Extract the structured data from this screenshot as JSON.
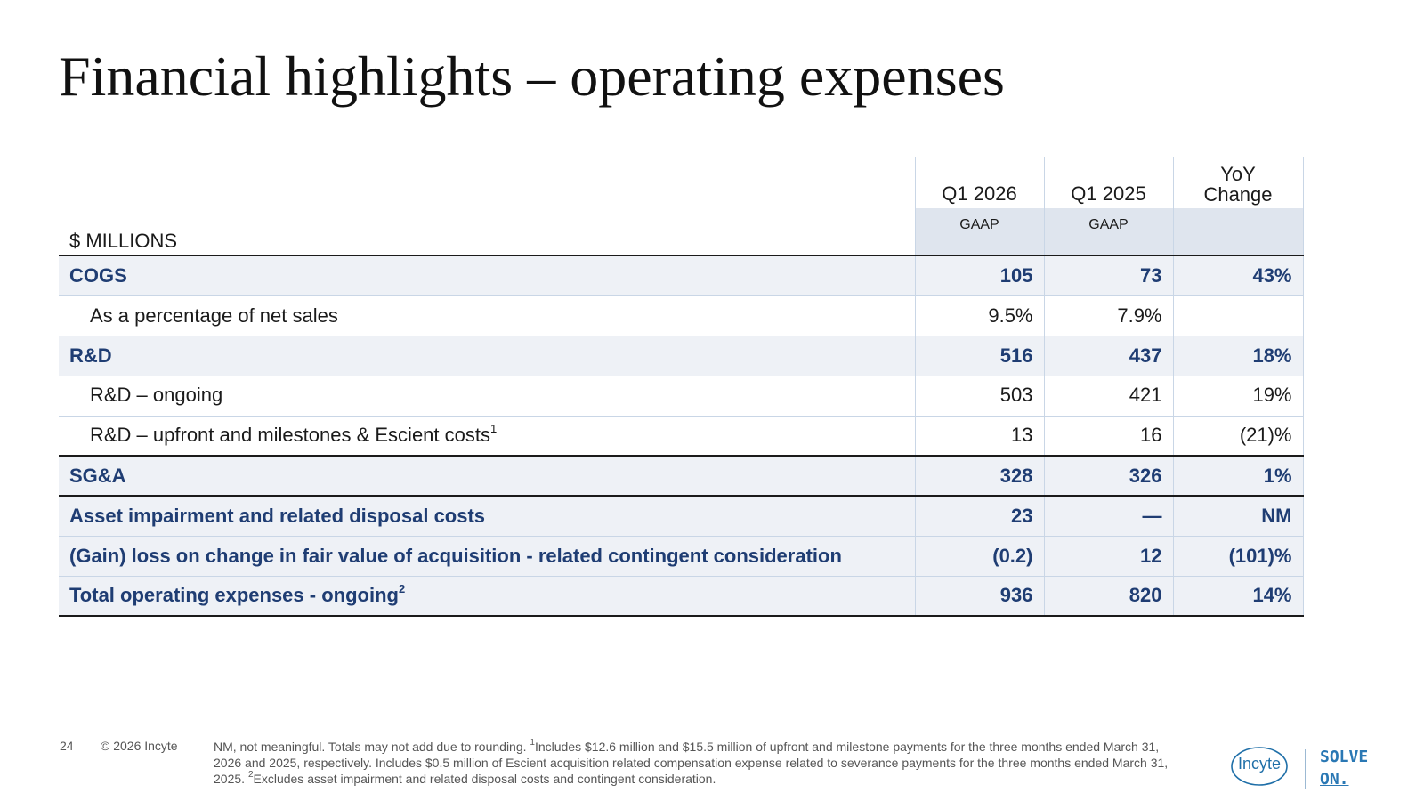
{
  "slide": {
    "title": "Financial highlights – operating expenses",
    "page_number": "24",
    "copyright": "© 2026 Incyte"
  },
  "table": {
    "units_label": "$ MILLIONS",
    "columns": [
      {
        "period": "Q1 2026",
        "basis": "GAAP"
      },
      {
        "period": "Q1 2025",
        "basis": "GAAP"
      },
      {
        "period_line1": "YoY",
        "period_line2": "Change"
      }
    ],
    "rows": [
      {
        "label": "COGS",
        "sup": "",
        "q1_2026": "105",
        "q1_2025": "73",
        "yoy": "43%"
      },
      {
        "label": "As a percentage of net sales",
        "sup": "",
        "q1_2026": "9.5%",
        "q1_2025": "7.9%",
        "yoy": ""
      },
      {
        "label": "R&D",
        "sup": "",
        "q1_2026": "516",
        "q1_2025": "437",
        "yoy": "18%"
      },
      {
        "label": "R&D – ongoing",
        "sup": "",
        "q1_2026": "503",
        "q1_2025": "421",
        "yoy": "19%"
      },
      {
        "label": "R&D – upfront and milestones & Escient costs",
        "sup": "1",
        "q1_2026": "13",
        "q1_2025": "16",
        "yoy": "(21)%"
      },
      {
        "label": "SG&A",
        "sup": "",
        "q1_2026": "328",
        "q1_2025": "326",
        "yoy": "1%"
      },
      {
        "label": "Asset impairment and related disposal costs",
        "sup": "",
        "q1_2026": "23",
        "q1_2025": "—",
        "yoy": "NM"
      },
      {
        "label": "(Gain) loss on change in fair value of acquisition - related contingent consideration",
        "sup": "",
        "q1_2026": "(0.2)",
        "q1_2025": "12",
        "yoy": "(101)%"
      },
      {
        "label": "Total operating expenses - ongoing",
        "sup": "2",
        "q1_2026": "936",
        "q1_2025": "820",
        "yoy": "14%"
      }
    ]
  },
  "footnote": {
    "part1": "NM, not meaningful. Totals may not add due to rounding. ",
    "sup1": "1",
    "part2": "Includes $12.6 million and $15.5 million of upfront and milestone payments for the three months ended March 31, 2026 and 2025, respectively. Includes $0.5 million of Escient acquisition related compensation expense related to severance payments for the three months ended March 31, 2025. ",
    "sup2": "2",
    "part3": "Excludes asset impairment and related disposal costs and contingent consideration."
  },
  "brand": {
    "logo_text": "Incyte",
    "tagline_line1": "SOLVE",
    "tagline_line2": "ON.",
    "accent_color": "#1f3d73",
    "logo_color": "#1f6fa8"
  }
}
